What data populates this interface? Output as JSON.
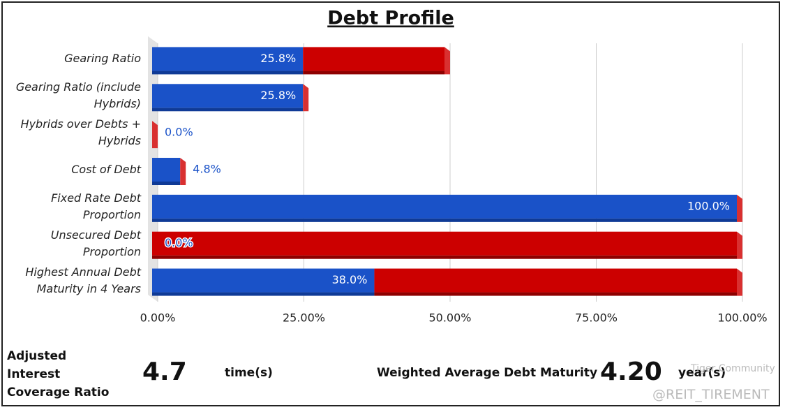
{
  "chart_data": {
    "type": "bar",
    "orientation": "horizontal",
    "stacked": true,
    "title": "Debt Profile",
    "categories": [
      "Gearing Ratio",
      "Gearing Ratio (include Hybrids)",
      "Hybrids over Debts + Hybrids",
      "Cost of Debt",
      "Fixed Rate Debt Proportion",
      "Unsecured Debt Proportion",
      "Highest Annual Debt Maturity in 4 Years"
    ],
    "series": [
      {
        "color": "#1a52c8",
        "values": [
          25.8,
          25.8,
          0.0,
          4.8,
          100.0,
          0.0,
          38.0
        ],
        "value_labels": [
          "25.8%",
          "25.8%",
          "0.0%",
          "4.8%",
          "100.0%",
          "0.0%",
          "38.0%"
        ]
      },
      {
        "color": "#cc0000",
        "values": [
          24.2,
          0,
          0,
          0,
          0,
          100,
          62
        ]
      }
    ],
    "xlim": [
      0,
      100
    ],
    "xticks": [
      {
        "value": 0,
        "label": "0.00%"
      },
      {
        "value": 25,
        "label": "25.00%"
      },
      {
        "value": 50,
        "label": "50.00%"
      },
      {
        "value": 75,
        "label": "75.00%"
      },
      {
        "value": 100,
        "label": "100.00%"
      }
    ],
    "grid": true
  },
  "metrics": [
    {
      "label": "Adjusted Interest Coverage Ratio",
      "value": "4.7",
      "unit": "time(s)"
    },
    {
      "label": "Weighted Average Debt Maturity",
      "value": "4.20",
      "unit": "year(s)"
    }
  ],
  "watermark": [
    "Tiger Community",
    "@REIT_TIREMENT"
  ]
}
